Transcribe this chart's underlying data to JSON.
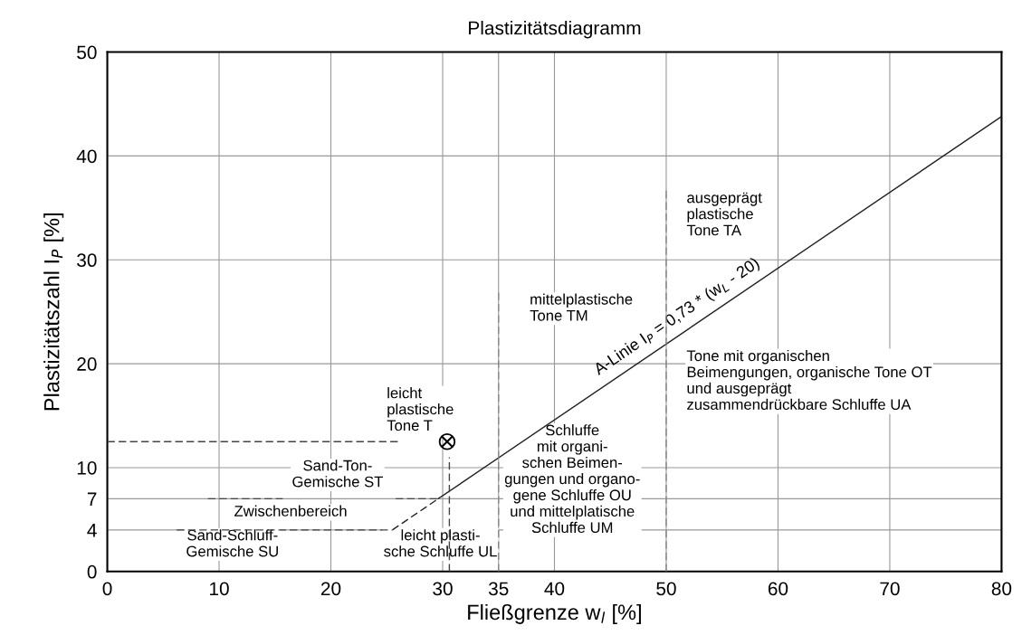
{
  "chart_data": {
    "type": "line",
    "title": "Plastizitätsdiagramm",
    "xlabel": "Fließgrenze w$_{l}$ [%]",
    "ylabel": "Plastizitätszahl I$_{P}$ [%]",
    "xlim": [
      0,
      80
    ],
    "ylim": [
      0,
      50
    ],
    "xticks": [
      0,
      10,
      20,
      30,
      35,
      40,
      50,
      60,
      70,
      80
    ],
    "yticks": [
      0,
      4,
      7,
      10,
      20,
      30,
      40,
      50
    ],
    "grid": true,
    "series": [
      {
        "color": "#222222",
        "line_style": "dashed",
        "x": [
          25.5,
          29.6
        ],
        "values": [
          4,
          7
        ]
      },
      {
        "color": "#222222",
        "line_style": "solid",
        "x": [
          29.6,
          80
        ],
        "values": [
          7,
          43.8
        ]
      },
      {
        "color": "#444444",
        "line_style": "dashed",
        "x": [
          0,
          26
        ],
        "values": [
          12.5,
          12.5
        ]
      },
      {
        "color": "#444444",
        "line_style": "dashed",
        "x": [
          30.6,
          30.6
        ],
        "values": [
          0,
          11
        ]
      },
      {
        "color": "#444444",
        "line_style": "dashed",
        "x": [
          6.2,
          25.5
        ],
        "values": [
          4,
          4
        ]
      },
      {
        "color": "#444444",
        "line_style": "dashed",
        "x": [
          9.0,
          15.7
        ],
        "values": [
          7,
          7
        ]
      },
      {
        "color": "#444444",
        "line_style": "dashed",
        "x": [
          25.8,
          29.5
        ],
        "values": [
          7,
          7
        ]
      },
      {
        "color": "#888888",
        "line_style": "dashed",
        "x": [
          35,
          35
        ],
        "values": [
          0,
          27
        ]
      },
      {
        "color": "#888888",
        "line_style": "dashed",
        "x": [
          50,
          50
        ],
        "values": [
          0,
          37
        ]
      },
      {
        "type": "scatter",
        "color": "#000000",
        "marker": "circle",
        "x": [
          30.4
        ],
        "values": [
          12.5
        ]
      }
    ],
    "annotations": [
      "leicht\nplastische\nTone T",
      "Sand-Ton-\nGemische ST",
      "Zwischenbereich",
      "Sand-Schluff-\nGemische SU",
      "leicht plasti-\nsche Schluffe UL",
      "mittelplastische\nTone TM",
      "ausgeprägt\nplastische\nTone TA",
      "A-Linie I$_{P}$ = 0,73 * (w$_{L}$ - 20)",
      "Tone mit organischen\nBeimengungen, organische Tone OT\nund ausgeprägt\nzusammendrückbare Schluffe UA",
      "Schluffe\nmit organi-\nschen Beimen-\ngungen und organo-\ngene Schluffe OU\nund mittelplatische\nSchluffe UM"
    ]
  }
}
